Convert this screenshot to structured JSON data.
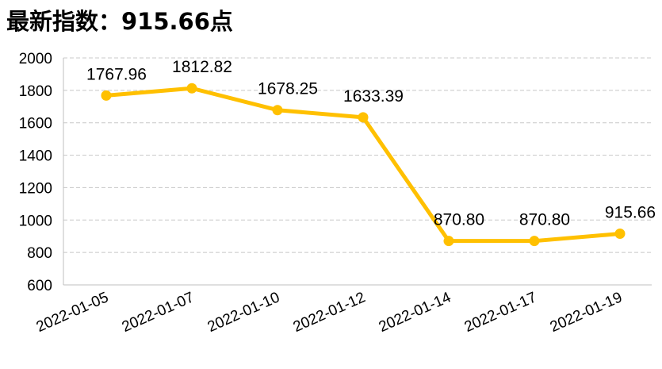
{
  "chart_data": {
    "type": "line",
    "title": "最新指数：915.66点",
    "categories": [
      "2022-01-05",
      "2022-01-07",
      "2022-01-10",
      "2022-01-12",
      "2022-01-14",
      "2022-01-17",
      "2022-01-19"
    ],
    "series": [
      {
        "values": [
          1767.96,
          1812.82,
          1678.25,
          1633.39,
          870.8,
          870.8,
          915.66
        ],
        "labels": [
          "1767.96",
          "1812.82",
          "1678.25",
          "1633.39",
          "870.80",
          "870.80",
          "915.66"
        ],
        "color": "#FFC000"
      }
    ],
    "yticks": [
      "600",
      "800",
      "1000",
      "1200",
      "1400",
      "1600",
      "1800",
      "2000"
    ],
    "ylim": [
      600,
      2000
    ],
    "grid": true,
    "legend": "none",
    "xlabel": "",
    "ylabel": ""
  }
}
